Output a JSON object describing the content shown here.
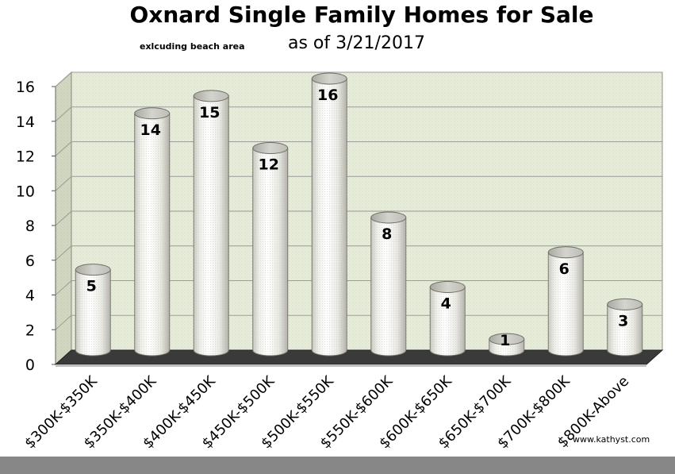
{
  "chart_data": {
    "type": "bar",
    "title": "Oxnard Single Family Homes for Sale",
    "subtitle_note": "exlcuding beach area",
    "subtitle_date": "as of 3/21/2017",
    "categories": [
      "$300K-$350K",
      "$350K-$400K",
      "$400K-$450K",
      "$450K-$500K",
      "$500K-$550K",
      "$550K-$600K",
      "$600K-$650K",
      "$650K-$700K",
      "$700K-$800K",
      "$800K-Above"
    ],
    "values": [
      5,
      14,
      15,
      12,
      16,
      8,
      4,
      1,
      6,
      3
    ],
    "ylim": [
      0,
      16
    ],
    "yticks": [
      0,
      2,
      4,
      6,
      8,
      10,
      12,
      14,
      16
    ],
    "grid": true,
    "xlabel": "",
    "ylabel": "",
    "style": "3d-cylinder",
    "colors": {
      "wall": "#e8eedb",
      "floor": "#3a3a3a",
      "bar": "#f2f2ee",
      "gridline": "#9c9c9c"
    }
  },
  "footer": {
    "source": "www.kathyst.com",
    "bar_color": "#878787"
  }
}
